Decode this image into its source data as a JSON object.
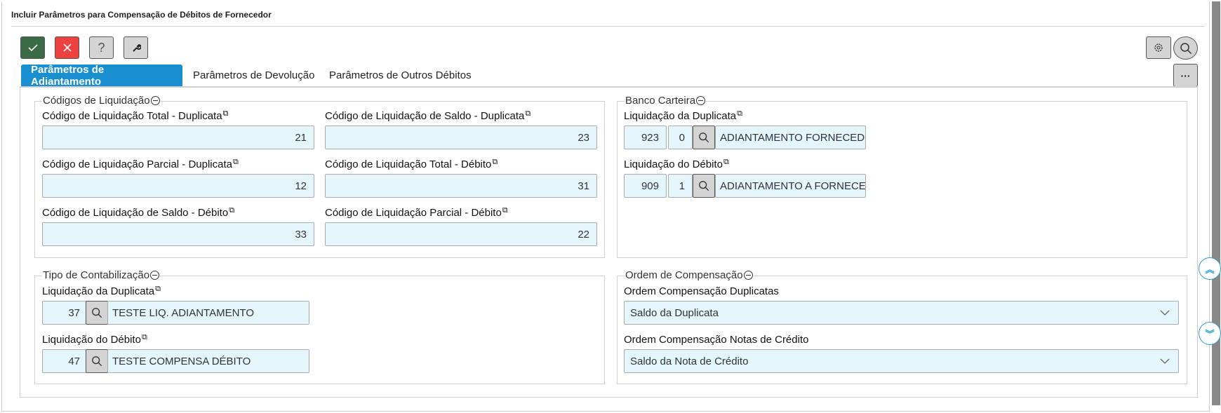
{
  "window": {
    "title": "Incluir Parâmetros para Compensação de Débitos de Fornecedor"
  },
  "toolbar": {
    "confirm_icon": "check-icon",
    "cancel_icon": "close-icon",
    "help_label": "?",
    "tools_icon": "wrench-icon",
    "settings_icon": "gear-icon",
    "search_icon": "search-icon",
    "more_label": "···"
  },
  "tabs": [
    {
      "label": "Parâmetros de Adiantamento",
      "active": true
    },
    {
      "label": "Parâmetros de Devolução"
    },
    {
      "label": "Parâmetros de Outros Débitos"
    }
  ],
  "colors": {
    "accent": "#1a8fcf",
    "confirm": "#3a6b45",
    "cancel": "#ef4040",
    "input_bg": "#e5f5fc"
  },
  "codigos": {
    "legend": "Códigos de Liquidação",
    "fields": [
      {
        "label": "Código de Liquidação Total - Duplicata",
        "value": "21"
      },
      {
        "label": "Código de Liquidação de Saldo - Duplicata",
        "value": "23"
      },
      {
        "label": "Código de Liquidação Parcial - Duplicata",
        "value": "12"
      },
      {
        "label": "Código de Liquidação Total - Débito",
        "value": "31"
      },
      {
        "label": "Código de Liquidação de Saldo - Débito",
        "value": "33"
      },
      {
        "label": "Código de Liquidação Parcial - Débito",
        "value": "22"
      }
    ]
  },
  "banco": {
    "legend": "Banco Carteira",
    "fields": [
      {
        "label": "Liquidação da Duplicata",
        "code": "923",
        "sub": "0",
        "desc": "ADIANTAMENTO FORNECEDOR"
      },
      {
        "label": "Liquidação do Débito",
        "code": "909",
        "sub": "1",
        "desc": "ADIANTAMENTO A FORNECEDORES"
      }
    ]
  },
  "tipo": {
    "legend": "Tipo de Contabilização",
    "fields": [
      {
        "label": "Liquidação da Duplicata",
        "code": "37",
        "desc": "TESTE LIQ. ADIANTAMENTO"
      },
      {
        "label": "Liquidação do Débito",
        "code": "47",
        "desc": "TESTE COMPENSA DÉBITO"
      }
    ]
  },
  "ordem": {
    "legend": "Ordem de Compensação",
    "fields": [
      {
        "label": "Ordem Compensação Duplicatas",
        "value": "Saldo da Duplicata"
      },
      {
        "label": "Ordem Compensação Notas de Crédito",
        "value": "Saldo da Nota de Crédito"
      }
    ]
  },
  "copy_glyph": "⧉"
}
